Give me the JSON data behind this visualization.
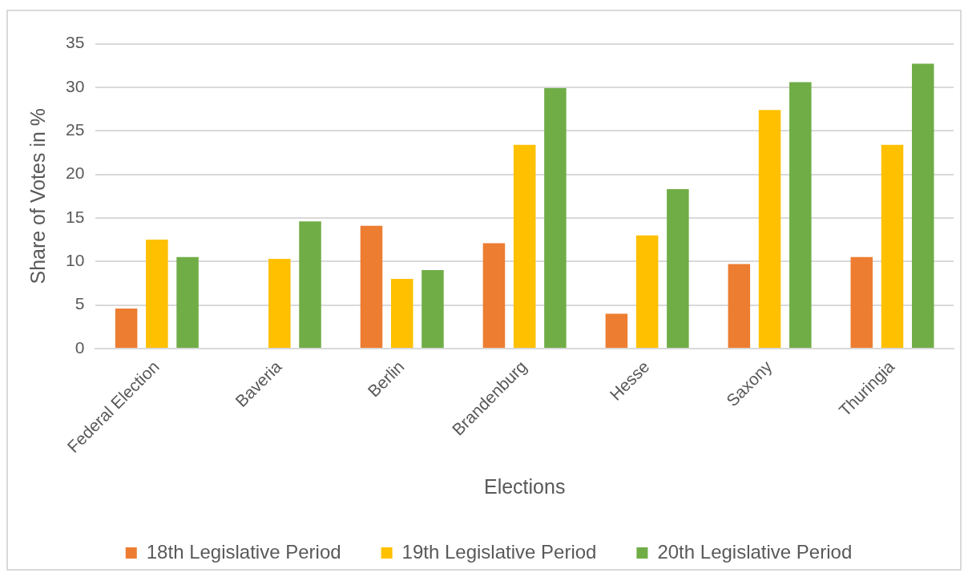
{
  "chart_data": {
    "type": "bar",
    "xlabel": "Elections",
    "ylabel": "Share of Votes in %",
    "categories": [
      "Federal Election",
      "Baveria",
      "Berlin",
      "Brandenburg",
      "Hesse",
      "Saxony",
      "Thuringia"
    ],
    "series": [
      {
        "name": "18th Legislative Period",
        "color": "#ed7d31",
        "values": [
          4.6,
          null,
          14.1,
          12.1,
          4.0,
          9.7,
          10.5
        ]
      },
      {
        "name": "19th Legislative Period",
        "color": "#ffc000",
        "values": [
          12.5,
          10.3,
          8.0,
          23.4,
          13.0,
          27.4,
          23.4
        ]
      },
      {
        "name": "20th Legislative Period",
        "color": "#70ad47",
        "values": [
          10.5,
          14.6,
          9.0,
          29.9,
          18.3,
          30.6,
          32.7
        ]
      }
    ],
    "ylim": [
      0,
      35
    ],
    "yticks": [
      0,
      5,
      10,
      15,
      20,
      25,
      30,
      35
    ],
    "grid": "y",
    "legend": "bottom"
  }
}
